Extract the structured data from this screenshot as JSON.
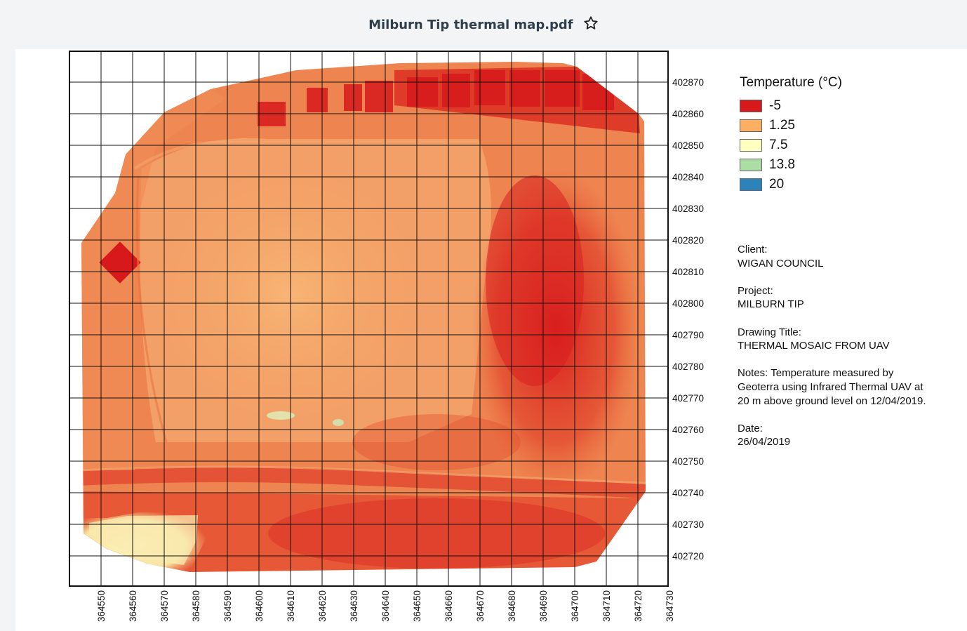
{
  "document": {
    "title": "Milburn Tip thermal map.pdf",
    "star_icon": "star-outline-icon"
  },
  "map": {
    "x_ticks": [
      "364550",
      "364560",
      "364570",
      "364580",
      "364590",
      "364600",
      "364610",
      "364620",
      "364630",
      "364640",
      "364650",
      "364660",
      "364670",
      "364680",
      "364690",
      "364700",
      "364710",
      "364720",
      "364730"
    ],
    "y_ticks": [
      "402870",
      "402860",
      "402850",
      "402840",
      "402830",
      "402820",
      "402810",
      "402800",
      "402790",
      "402780",
      "402770",
      "402760",
      "402750",
      "402740",
      "402730",
      "402720"
    ]
  },
  "legend": {
    "title": "Temperature (°C)",
    "items": [
      {
        "label": "-5",
        "color": "#d7191c"
      },
      {
        "label": "1.25",
        "color": "#fdae61"
      },
      {
        "label": "7.5",
        "color": "#ffffbf"
      },
      {
        "label": "13.8",
        "color": "#abdda4"
      },
      {
        "label": "20",
        "color": "#2b83ba"
      }
    ]
  },
  "info": {
    "client_label": "Client:",
    "client_value": "WIGAN COUNCIL",
    "project_label": "Project:",
    "project_value": "MILBURN TIP",
    "drawing_title_label": "Drawing Title:",
    "drawing_title_value": "THERMAL MOSAIC FROM UAV",
    "notes_line1": "Notes: Temperature measured by",
    "notes_line2": "Geoterra using Infrared Thermal UAV at",
    "notes_line3": "20 m above ground level on 12/04/2019.",
    "date_label": "Date:",
    "date_value": "26/04/2019"
  }
}
